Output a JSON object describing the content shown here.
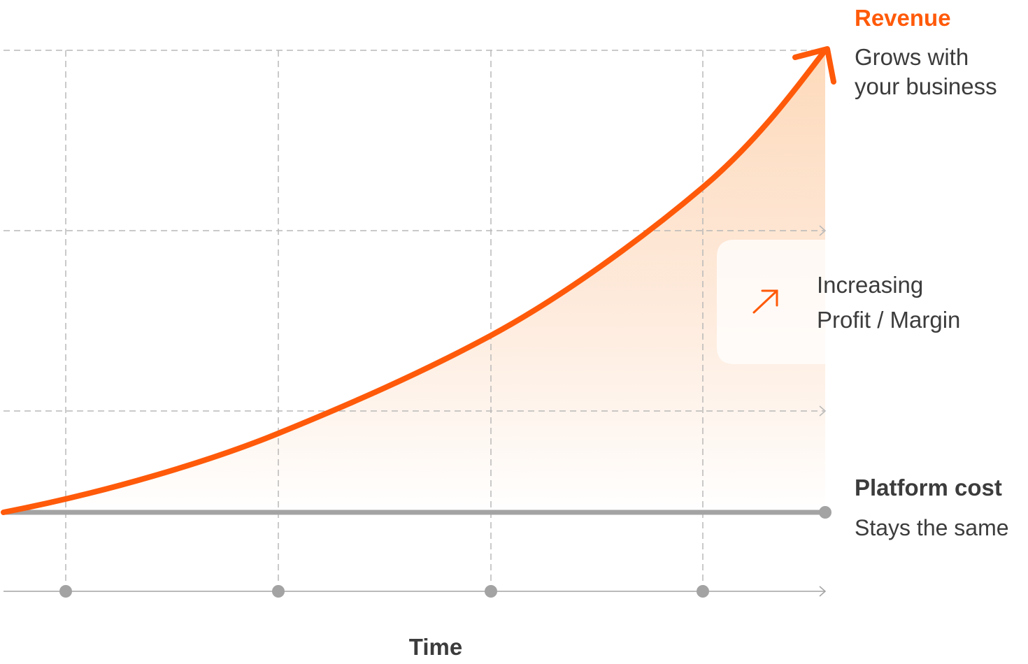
{
  "revenue": {
    "label": "Revenue",
    "description": [
      "Grows with",
      "your business"
    ]
  },
  "profit": {
    "label": [
      "Increasing",
      "Profit / Margin"
    ]
  },
  "platform_cost": {
    "label": "Platform cost",
    "description": "Stays the same"
  },
  "x_axis": {
    "label": "Time"
  }
}
